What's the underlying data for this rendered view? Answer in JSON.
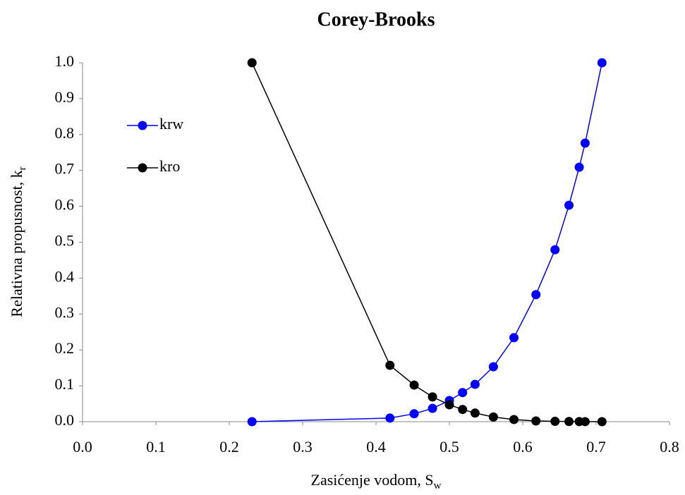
{
  "chart_data": {
    "type": "line",
    "title": "Corey-Brooks",
    "x_label": "Zasićenje vodom, S",
    "x_label_sub": "w",
    "y_label": "Relativna propusnost, k",
    "y_label_sub": "r",
    "xlim": [
      0,
      0.8
    ],
    "ylim": [
      0,
      1
    ],
    "xticks": [
      {
        "value": 0,
        "label": "0.0"
      },
      0.1,
      0.2,
      0.3,
      0.4,
      0.5,
      0.6,
      0.7,
      0.8
    ],
    "yticks": [
      {
        "value": 0,
        "label": "0.0"
      },
      0.1,
      0.2,
      0.3,
      0.4,
      0.5,
      0.6,
      0.7,
      0.8,
      0.9,
      {
        "value": 1,
        "label": "1.0"
      }
    ],
    "grid": false,
    "legend": "upper left",
    "x": [
      0.231,
      0.419,
      0.452,
      0.477,
      0.5,
      0.518,
      0.535,
      0.56,
      0.588,
      0.618,
      0.644,
      0.663,
      0.677,
      0.685,
      0.708
    ],
    "series": [
      {
        "name": "krw",
        "color": "#0000ff",
        "values": [
          0,
          0.01,
          0.022,
          0.037,
          0.059,
          0.081,
          0.104,
          0.153,
          0.234,
          0.354,
          0.479,
          0.603,
          0.709,
          0.776,
          1.0
        ]
      },
      {
        "name": "kro",
        "color": "#000000",
        "values": [
          1.0,
          0.157,
          0.102,
          0.069,
          0.047,
          0.034,
          0.024,
          0.013,
          0.006,
          0.002,
          0.001,
          0.0005,
          0.0002,
          0.0001,
          0
        ]
      }
    ]
  }
}
